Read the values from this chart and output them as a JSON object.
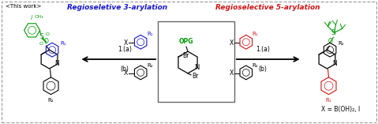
{
  "title_text": "<This work>",
  "left_title": "Regioseletive 3-arylation",
  "right_title": "Regioselective 5-arylation",
  "left_title_color": "#1414CC",
  "right_title_color": "#CC1414",
  "left_arrow_label_a": "1.(a)",
  "left_arrow_label_b": "(b)",
  "right_arrow_label_a": "1.(a)",
  "right_arrow_label_b": "(b)",
  "bottom_label": "X = B(OH)₂, I",
  "background_color": "#FFFFFF",
  "dpi": 100,
  "figure_width": 4.79,
  "figure_height": 1.57
}
